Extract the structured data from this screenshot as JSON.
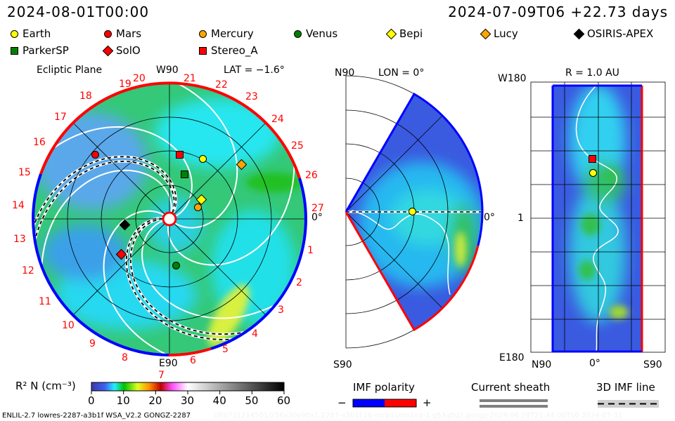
{
  "header": {
    "model_time": "2024-08-01T00:00",
    "reference_time": "2024-07-09T06 +22.73 days"
  },
  "legend": [
    {
      "label": "Earth",
      "shape": "circle",
      "color": "#ffff00"
    },
    {
      "label": "Mars",
      "shape": "circle",
      "color": "#ff0000"
    },
    {
      "label": "Mercury",
      "shape": "circle",
      "color": "#ffa500"
    },
    {
      "label": "Venus",
      "shape": "circle",
      "color": "#008000"
    },
    {
      "label": "Bepi",
      "shape": "diamond",
      "color": "#ffff00"
    },
    {
      "label": "Lucy",
      "shape": "diamond",
      "color": "#ffa500"
    },
    {
      "label": "OSIRIS-APEX",
      "shape": "diamond",
      "color": "#000000"
    },
    {
      "label": "ParkerSP",
      "shape": "square",
      "color": "#008000"
    },
    {
      "label": "SolO",
      "shape": "diamond",
      "color": "#ff0000"
    },
    {
      "label": "Stereo_A",
      "shape": "square",
      "color": "#ff0000"
    }
  ],
  "panels": {
    "ecliptic": {
      "title": "Ecliptic Plane",
      "lat": "LAT = −1.6°",
      "top": "W90",
      "bottom": "E90",
      "right": "0°",
      "carrington_labels": [
        "19",
        "20",
        "21",
        "22",
        "23",
        "24",
        "25",
        "26",
        "27",
        "1",
        "2",
        "3",
        "4",
        "5",
        "6",
        "7",
        "8",
        "9",
        "10",
        "11",
        "12",
        "13",
        "14",
        "15",
        "16",
        "17",
        "18"
      ]
    },
    "meridional": {
      "top": "N90",
      "lon": "LON = 0°",
      "bottom": "S90",
      "right": "0°"
    },
    "radial": {
      "title": "R = 1.0 AU",
      "top_left": "W180",
      "mid_left": "1",
      "bottom_left": "E180",
      "x_left": "N90",
      "x_mid": "0°",
      "x_right": "S90"
    }
  },
  "colorbar": {
    "label": "R² N (cm⁻³)",
    "ticks": [
      "0",
      "10",
      "20",
      "30",
      "40",
      "50",
      "60"
    ]
  },
  "imf_legend": {
    "polarity": "IMF polarity",
    "minus": "−",
    "plus": "+",
    "negative_color": "#0000ff",
    "positive_color": "#ff0000",
    "sheath": "Current sheath",
    "imf_line": "3D IMF line"
  },
  "footer": {
    "run_info": "ENLIL-2.7 lowres-2287-a3b1f WSA_V2.2 GONGZ-2287",
    "faint_info": "UE0731214501/256x30x90x1.2287-a3b1f.16-mcp1umn1cd-1.g53q5d2.gongz-2024:06:29T21:44:00T00   2024-07-31"
  },
  "chart_data": {
    "type": "heatmap",
    "title": "ENLIL solar wind density R² N",
    "colorbar_range": [
      0,
      60
    ],
    "colorbar_unit": "cm^-3",
    "panels": [
      "Ecliptic Plane (LAT = -1.6°)",
      "Meridional (LON = 0°)",
      "R = 1.0 AU"
    ]
  }
}
